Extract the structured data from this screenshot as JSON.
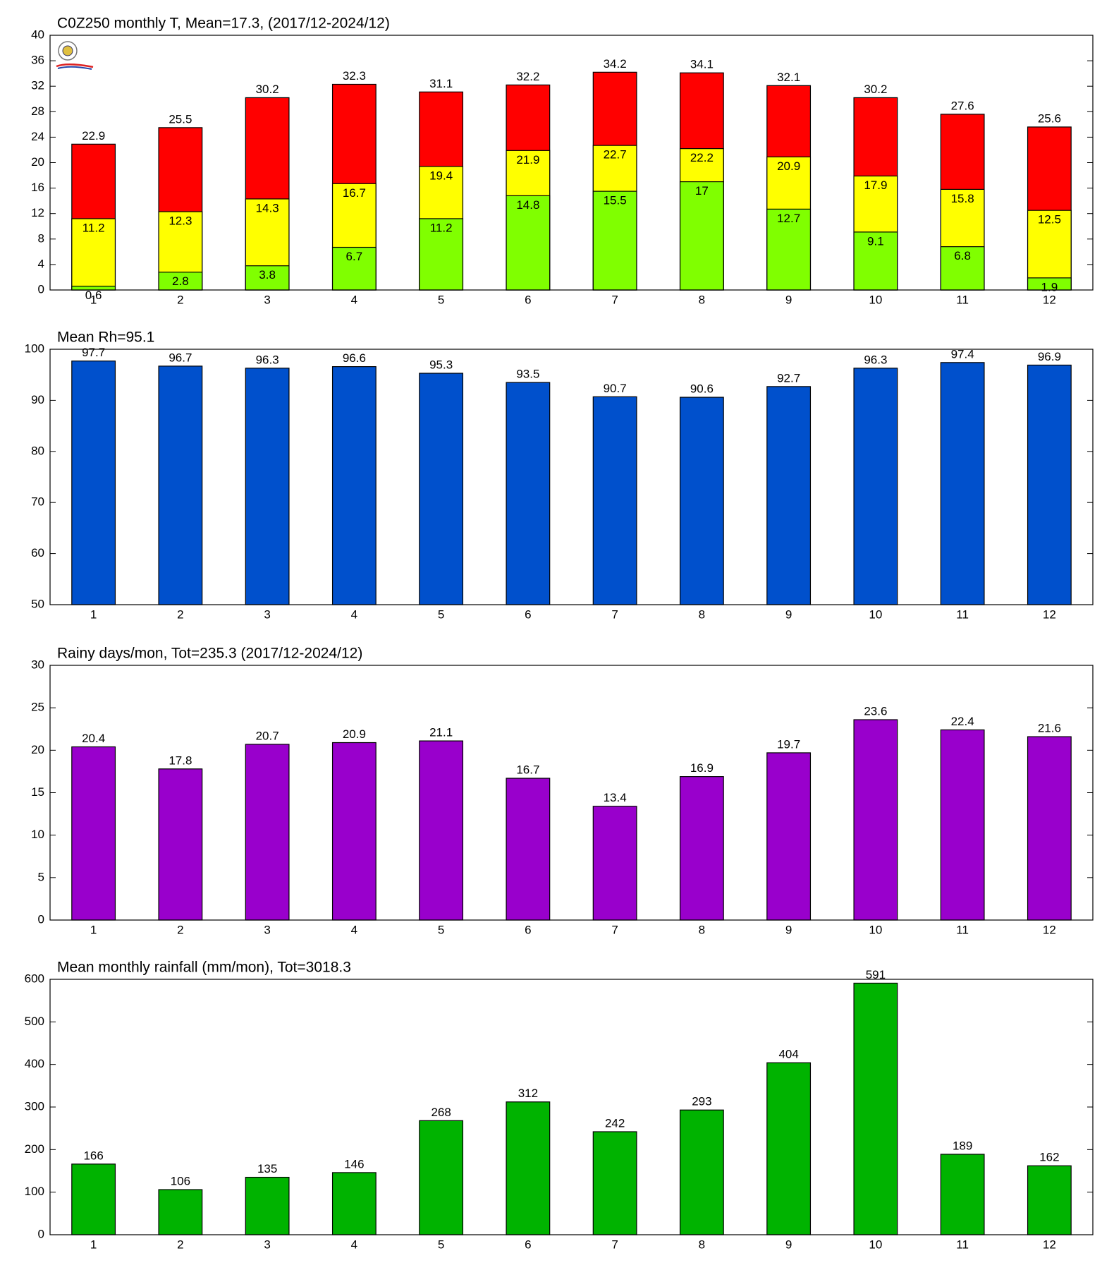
{
  "chart_data": [
    {
      "type": "bar",
      "title": "C0Z250 monthly T, Mean=17.3, (2017/12-2024/12)",
      "categories": [
        "1",
        "2",
        "3",
        "4",
        "5",
        "6",
        "7",
        "8",
        "9",
        "10",
        "11",
        "12"
      ],
      "series": [
        {
          "color": "#ff0000",
          "values": [
            22.9,
            25.5,
            30.2,
            32.3,
            31.1,
            32.2,
            34.2,
            34.1,
            32.1,
            30.2,
            27.6,
            25.6
          ]
        },
        {
          "color": "#ffff00",
          "values": [
            11.2,
            12.3,
            14.3,
            16.7,
            19.4,
            21.9,
            22.7,
            22.2,
            20.9,
            17.9,
            15.8,
            12.5
          ]
        },
        {
          "color": "#80ff00",
          "values": [
            0.6,
            2.8,
            3.8,
            6.7,
            11.2,
            14.8,
            15.5,
            17,
            12.7,
            9.1,
            6.8,
            1.9
          ]
        }
      ],
      "ylim": [
        0,
        40
      ],
      "yticks": [
        0,
        4,
        8,
        12,
        16,
        20,
        24,
        28,
        32,
        36,
        40
      ]
    },
    {
      "type": "bar",
      "title": "Mean Rh=95.1",
      "categories": [
        "1",
        "2",
        "3",
        "4",
        "5",
        "6",
        "7",
        "8",
        "9",
        "10",
        "11",
        "12"
      ],
      "values": [
        97.7,
        96.7,
        96.3,
        96.6,
        95.3,
        93.5,
        90.7,
        90.6,
        92.7,
        96.3,
        97.4,
        96.9
      ],
      "color": "#0050cc",
      "ylim": [
        50,
        100
      ],
      "yticks": [
        50,
        60,
        70,
        80,
        90,
        100
      ]
    },
    {
      "type": "bar",
      "title": "Rainy days/mon, Tot=235.3 (2017/12-2024/12)",
      "categories": [
        "1",
        "2",
        "3",
        "4",
        "5",
        "6",
        "7",
        "8",
        "9",
        "10",
        "11",
        "12"
      ],
      "values": [
        20.4,
        17.8,
        20.7,
        20.9,
        21.1,
        16.7,
        13.4,
        16.9,
        19.7,
        23.6,
        22.4,
        21.6
      ],
      "color": "#9900cc",
      "ylim": [
        0,
        30
      ],
      "yticks": [
        0,
        5,
        10,
        15,
        20,
        25,
        30
      ]
    },
    {
      "type": "bar",
      "title": "Mean monthly rainfall (mm/mon), Tot=3018.3",
      "categories": [
        "1",
        "2",
        "3",
        "4",
        "5",
        "6",
        "7",
        "8",
        "9",
        "10",
        "11",
        "12"
      ],
      "values": [
        166,
        106,
        135,
        146,
        268,
        312,
        242,
        293,
        404,
        591,
        189,
        162
      ],
      "color": "#00b300",
      "ylim": [
        0,
        600
      ],
      "yticks": [
        0,
        100,
        200,
        300,
        400,
        500,
        600
      ]
    }
  ]
}
